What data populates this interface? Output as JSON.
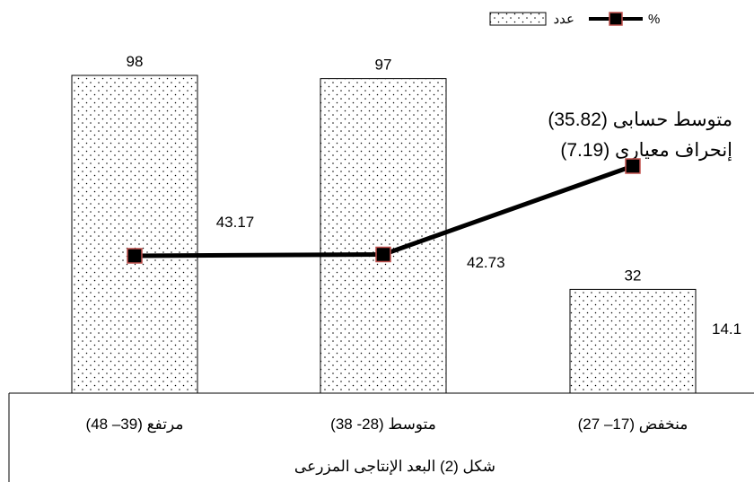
{
  "chart_data": {
    "type": "bar",
    "categories": [
      "مرتفع (39– 48)",
      "متوسط (28- 38)",
      "منخفض (17– 27)"
    ],
    "series": [
      {
        "name": "عدد",
        "type": "bar",
        "values": [
          98,
          97,
          32
        ]
      },
      {
        "name": "%",
        "type": "line",
        "values": [
          43.17,
          42.73,
          14.1
        ]
      }
    ],
    "bar_labels": [
      "98",
      "97",
      "32"
    ],
    "line_labels": [
      "43.17",
      "42.73",
      "14.1"
    ],
    "annotations": [
      "متوسط حسابى  (35.82)",
      "إنحراف معيارى (7.19)"
    ],
    "xlabel": "شكل (2) البعد الإنتاجى المزرعى",
    "legend_position": "top-right",
    "ylim": [
      0,
      110
    ],
    "colors": {
      "line": "#000000",
      "marker_fill": "#000000",
      "marker_border": "#c0504d",
      "bar_fill": "#ffffff",
      "bar_dots": "#000000"
    }
  }
}
